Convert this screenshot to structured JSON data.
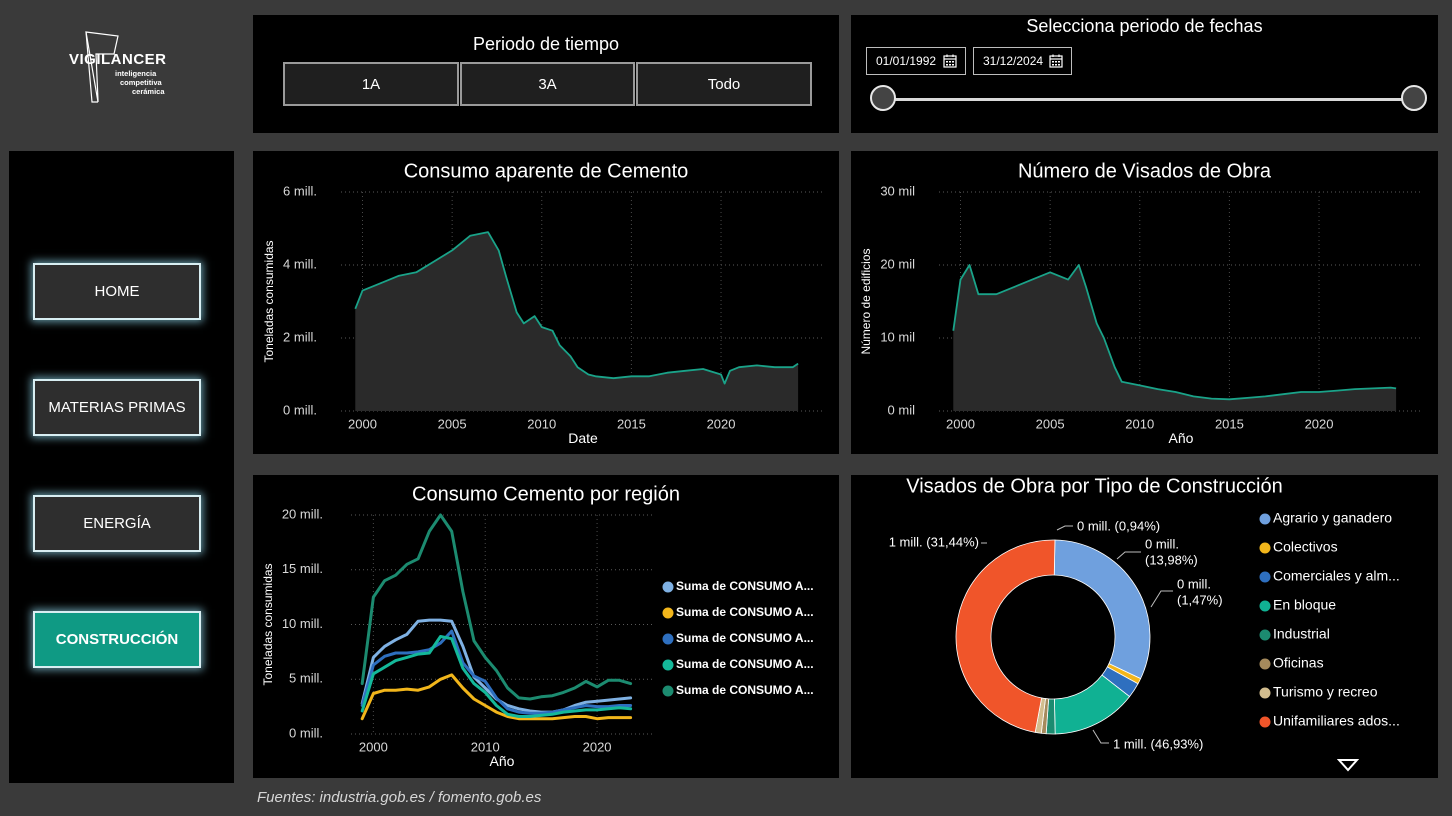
{
  "logo": {
    "brand": "VIGILANCER",
    "line1": "inteligencia",
    "line2": "competitiva",
    "line3": "cerámica"
  },
  "period": {
    "title": "Periodo de tiempo",
    "buttons": [
      "1A",
      "3A",
      "Todo"
    ]
  },
  "date_range": {
    "title": "Selecciona periodo de fechas",
    "start": "01/01/1992",
    "end": "31/12/2024",
    "icon": "calendar-icon"
  },
  "nav": {
    "items": [
      "HOME",
      "MATERIAS PRIMAS",
      "ENERGÍA",
      "CONSTRUCCIÓN"
    ],
    "active": "CONSTRUCCIÓN",
    "active_color": "#0f9a84"
  },
  "footer": "Fuentes: industria.gob.es / fomento.gob.es",
  "colors": {
    "teal": "#1aa389",
    "background": "#3a3a3a",
    "panel": "#000000"
  },
  "chart_data": [
    {
      "id": "cemento",
      "type": "area",
      "title": "Consumo aparente de Cemento",
      "xlabel": "Date",
      "ylabel": "Toneladas consumidas",
      "xlim": [
        1998.8,
        2025.8
      ],
      "ylim": [
        0,
        6
      ],
      "yticks": [
        0,
        2,
        4,
        6
      ],
      "ytick_labels": [
        "0 mill.",
        "2 mill.",
        "4 mill.",
        "6 mill."
      ],
      "xticks": [
        2000,
        2005,
        2010,
        2015,
        2020
      ],
      "grid": true,
      "color": "#1aa389",
      "series": [
        {
          "x": [
            1999.6,
            2000,
            2001,
            2002,
            2003,
            2004,
            2005,
            2006,
            2007,
            2007.6,
            2008,
            2008.6,
            2009,
            2009.6,
            2010,
            2010.6,
            2011,
            2011.6,
            2012,
            2012.6,
            2013,
            2014,
            2015,
            2016,
            2017,
            2018,
            2019,
            2020,
            2020.2,
            2020.5,
            2021,
            2022,
            2023,
            2024,
            2024.3
          ],
          "values": [
            2.8,
            3.3,
            3.5,
            3.7,
            3.8,
            4.1,
            4.4,
            4.8,
            4.9,
            4.4,
            3.7,
            2.7,
            2.4,
            2.6,
            2.3,
            2.2,
            1.8,
            1.5,
            1.2,
            1.0,
            0.95,
            0.9,
            0.95,
            0.95,
            1.05,
            1.1,
            1.15,
            1.0,
            0.75,
            1.1,
            1.2,
            1.25,
            1.2,
            1.2,
            1.3
          ]
        }
      ]
    },
    {
      "id": "visados",
      "type": "area",
      "title": "Número de Visados de Obra",
      "xlabel": "Año",
      "ylabel": "Número de edificios",
      "xlim": [
        1998.8,
        2025.8
      ],
      "ylim": [
        0,
        30
      ],
      "yticks": [
        0,
        10,
        20,
        30
      ],
      "ytick_labels": [
        "0 mil",
        "10 mil",
        "20 mil",
        "30 mil"
      ],
      "xticks": [
        2000,
        2005,
        2010,
        2015,
        2020
      ],
      "grid": true,
      "color": "#1aa389",
      "series": [
        {
          "x": [
            1999.6,
            2000,
            2000.5,
            2001,
            2002,
            2003,
            2004,
            2005,
            2006,
            2006.6,
            2007,
            2007.6,
            2008,
            2008.6,
            2009,
            2010,
            2011,
            2012,
            2013,
            2014,
            2015,
            2016,
            2017,
            2018,
            2019,
            2020,
            2021,
            2022,
            2023,
            2024,
            2024.3
          ],
          "values": [
            11,
            18,
            20,
            16,
            16,
            17,
            18,
            19,
            18,
            20,
            17,
            12,
            10,
            6,
            4,
            3.5,
            3,
            2.6,
            2.0,
            1.7,
            1.6,
            1.8,
            2.0,
            2.3,
            2.6,
            2.6,
            2.8,
            3.0,
            3.1,
            3.2,
            3.1
          ]
        }
      ]
    },
    {
      "id": "region",
      "type": "line",
      "title": "Consumo Cemento por región",
      "xlabel": "Año",
      "ylabel": "Toneladas consumidas",
      "xlim": [
        1998,
        2025
      ],
      "ylim": [
        0,
        20
      ],
      "yticks": [
        0,
        5,
        10,
        15,
        20
      ],
      "ytick_labels": [
        "0 mill.",
        "5 mill.",
        "10 mill.",
        "15 mill.",
        "20 mill."
      ],
      "xticks": [
        2000,
        2010,
        2020
      ],
      "grid": true,
      "legend_position": "right",
      "x": [
        1999,
        2000,
        2001,
        2002,
        2003,
        2004,
        2005,
        2006,
        2007,
        2008,
        2009,
        2010,
        2011,
        2012,
        2013,
        2014,
        2015,
        2016,
        2017,
        2018,
        2019,
        2020,
        2021,
        2022,
        2023
      ],
      "series": [
        {
          "name": "Suma de CONSUMO A...",
          "color": "#7fb1e3",
          "values": [
            2.8,
            7.0,
            8.0,
            8.6,
            9.1,
            10.3,
            10.4,
            10.4,
            10.3,
            8.0,
            5.2,
            4.2,
            3.2,
            2.6,
            2.3,
            2.1,
            2.0,
            2.0,
            2.2,
            2.6,
            2.9,
            3.0,
            3.1,
            3.2,
            3.3
          ]
        },
        {
          "name": "Suma de CONSUMO A...",
          "color": "#f2b61b",
          "values": [
            1.4,
            3.7,
            4.0,
            4.0,
            4.1,
            4.0,
            4.3,
            5.0,
            5.4,
            4.2,
            3.2,
            2.6,
            2.0,
            1.6,
            1.4,
            1.4,
            1.4,
            1.4,
            1.5,
            1.6,
            1.6,
            1.4,
            1.5,
            1.5,
            1.5
          ]
        },
        {
          "name": "Suma de CONSUMO A...",
          "color": "#2e6fbf",
          "values": [
            2.6,
            6.3,
            7.1,
            7.4,
            7.4,
            7.5,
            7.7,
            8.3,
            9.4,
            6.5,
            5.3,
            4.8,
            3.3,
            2.3,
            2.0,
            1.9,
            1.9,
            2.0,
            2.2,
            2.4,
            2.6,
            2.5,
            2.5,
            2.6,
            2.6
          ]
        },
        {
          "name": "Suma de CONSUMO A...",
          "color": "#14b89a",
          "values": [
            2.1,
            5.5,
            6.1,
            6.7,
            7.0,
            7.3,
            7.4,
            8.9,
            8.7,
            6.0,
            4.6,
            3.8,
            2.6,
            1.8,
            1.6,
            1.6,
            1.7,
            1.8,
            2.0,
            2.1,
            2.2,
            2.2,
            2.3,
            2.4,
            2.3
          ]
        },
        {
          "name": "Suma de CONSUMO A...",
          "color": "#1c8b70",
          "values": [
            4.6,
            12.5,
            14.0,
            14.5,
            15.5,
            16.0,
            18.5,
            20.0,
            18.5,
            13.0,
            8.5,
            7.0,
            5.8,
            4.2,
            3.3,
            3.2,
            3.4,
            3.5,
            3.8,
            4.2,
            4.8,
            4.3,
            4.9,
            4.9,
            4.6
          ]
        }
      ]
    },
    {
      "id": "tipo",
      "type": "pie",
      "title": "Visados de Obra por Tipo de Construcción",
      "slices": [
        {
          "label": "Agrario y ganadero",
          "value": 31.44,
          "color": "#6fa0de"
        },
        {
          "label": "Colectivos",
          "value": 0.94,
          "color": "#f2b61b"
        },
        {
          "label": "Comerciales y alm...",
          "value": 2.5,
          "color": "#2e6fbf"
        },
        {
          "label": "En bloque",
          "value": 13.98,
          "color": "#10b193"
        },
        {
          "label": "Industrial",
          "value": 1.47,
          "color": "#1c8b70"
        },
        {
          "label": "Oficinas",
          "value": 0.8,
          "color": "#a58a5c"
        },
        {
          "label": "Turismo y recreo",
          "value": 1.0,
          "color": "#d2bd8e"
        },
        {
          "label": "Unifamiliares ados...",
          "value": 46.93,
          "color": "#f0552a"
        }
      ],
      "data_labels": [
        {
          "line1": "1 mill. (31,44%)",
          "line2": ""
        },
        {
          "line1": "0 mill. (0,94%)",
          "line2": ""
        },
        {
          "line1": "0 mill.",
          "line2": "(13,98%)"
        },
        {
          "line1": "0 mill.",
          "line2": "(1,47%)"
        },
        {
          "line1": "1 mill. (46,93%)",
          "line2": ""
        }
      ],
      "legend_position": "right"
    }
  ]
}
